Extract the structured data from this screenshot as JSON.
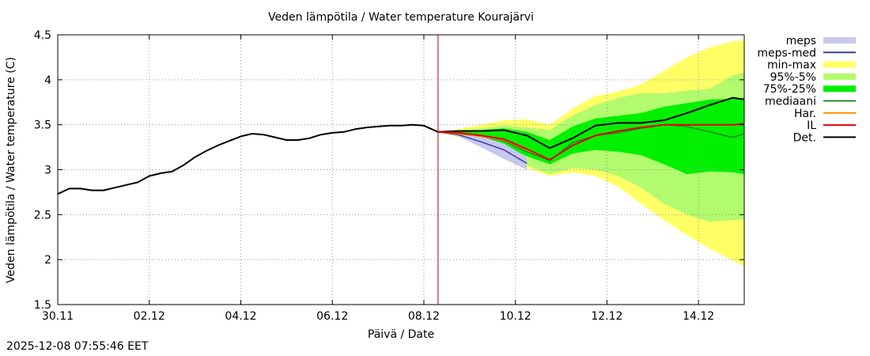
{
  "chart_data": {
    "type": "area",
    "title": "Veden lämpötila / Water temperature Kourajärvi",
    "xlabel": "Päivä / Date",
    "ylabel": "Veden lämpötila / Water temperature (C)",
    "x_start_day": 0,
    "x_end_day": 15,
    "x_ticks": [
      {
        "day": 0,
        "label": "30.11"
      },
      {
        "day": 2,
        "label": "02.12"
      },
      {
        "day": 4,
        "label": "04.12"
      },
      {
        "day": 6,
        "label": "06.12"
      },
      {
        "day": 8,
        "label": "08.12"
      },
      {
        "day": 10,
        "label": "10.12"
      },
      {
        "day": 12,
        "label": "12.12"
      },
      {
        "day": 14,
        "label": "14.12"
      }
    ],
    "ylim": [
      1.5,
      4.5
    ],
    "y_ticks": [
      "1.5",
      "2",
      "2.5",
      "3",
      "3.5",
      "4",
      "4.5"
    ],
    "forecast_start_day": 8.31,
    "legend": [
      {
        "label": "meps",
        "kind": "band",
        "color": "#c8c8f0"
      },
      {
        "label": "meps-med",
        "kind": "line",
        "color": "#3c3ca0"
      },
      {
        "label": "min-max",
        "kind": "band",
        "color": "#ffff66"
      },
      {
        "label": "95%-5%",
        "kind": "band",
        "color": "#b2fa6e"
      },
      {
        "label": "75%-25%",
        "kind": "band",
        "color": "#00f000"
      },
      {
        "label": "mediaani",
        "kind": "line",
        "color": "#228b22"
      },
      {
        "label": "Har.",
        "kind": "line",
        "color": "#ff8c00"
      },
      {
        "label": "IL",
        "kind": "line",
        "color": "#e00000"
      },
      {
        "label": "Det.",
        "kind": "line",
        "color": "#000000"
      }
    ],
    "observed": {
      "x": [
        0,
        0.25,
        0.5,
        0.75,
        1,
        1.25,
        1.5,
        1.75,
        2,
        2.25,
        2.5,
        2.75,
        3,
        3.25,
        3.5,
        3.75,
        4,
        4.25,
        4.5,
        4.75,
        5,
        5.25,
        5.5,
        5.75,
        6,
        6.25,
        6.5,
        6.75,
        7,
        7.25,
        7.5,
        7.75,
        8,
        8.31
      ],
      "y": [
        2.73,
        2.79,
        2.79,
        2.77,
        2.77,
        2.8,
        2.83,
        2.86,
        2.93,
        2.96,
        2.98,
        3.05,
        3.14,
        3.21,
        3.27,
        3.32,
        3.37,
        3.4,
        3.39,
        3.36,
        3.33,
        3.33,
        3.35,
        3.39,
        3.41,
        3.42,
        3.45,
        3.47,
        3.48,
        3.49,
        3.49,
        3.5,
        3.49,
        3.42
      ]
    },
    "forecast_x": [
      8.31,
      8.75,
      9.25,
      9.75,
      10.25,
      10.75,
      11.25,
      11.75,
      12.25,
      12.75,
      13.25,
      13.75,
      14.25,
      14.75,
      15
    ],
    "series": [
      {
        "name": "min-max",
        "low": [
          3.42,
          3.36,
          3.28,
          3.16,
          3.02,
          2.93,
          2.97,
          2.93,
          2.81,
          2.62,
          2.44,
          2.27,
          2.12,
          1.99,
          1.93
        ],
        "high": [
          3.42,
          3.45,
          3.5,
          3.55,
          3.56,
          3.5,
          3.68,
          3.82,
          3.87,
          3.95,
          4.1,
          4.25,
          4.36,
          4.43,
          4.44
        ]
      },
      {
        "name": "95%-5%",
        "low": [
          3.42,
          3.37,
          3.3,
          3.19,
          3.05,
          2.95,
          3.02,
          3.0,
          2.93,
          2.8,
          2.62,
          2.5,
          2.42,
          2.44,
          2.45
        ],
        "high": [
          3.42,
          3.44,
          3.46,
          3.49,
          3.47,
          3.44,
          3.6,
          3.72,
          3.8,
          3.85,
          3.85,
          3.88,
          3.9,
          4.05,
          4.08
        ]
      },
      {
        "name": "75%-25%",
        "low": [
          3.42,
          3.38,
          3.33,
          3.26,
          3.15,
          3.06,
          3.18,
          3.22,
          3.2,
          3.16,
          3.06,
          2.95,
          2.98,
          2.97,
          2.95
        ],
        "high": [
          3.42,
          3.43,
          3.44,
          3.46,
          3.42,
          3.33,
          3.48,
          3.57,
          3.6,
          3.63,
          3.7,
          3.74,
          3.78,
          3.79,
          3.8
        ]
      },
      {
        "name": "meps",
        "low": [
          3.42,
          3.37,
          3.25,
          3.12,
          3.0
        ],
        "high": [
          3.42,
          3.41,
          3.37,
          3.29,
          3.14
        ]
      },
      {
        "name": "meps-med",
        "y": [
          3.42,
          3.39,
          3.31,
          3.22,
          3.07
        ]
      },
      {
        "name": "mediaani",
        "y": [
          3.42,
          3.4,
          3.37,
          3.32,
          3.2,
          3.1,
          3.3,
          3.38,
          3.41,
          3.46,
          3.5,
          3.48,
          3.42,
          3.36,
          3.4
        ]
      },
      {
        "name": "Har.",
        "y": [
          3.42,
          3.4,
          3.37,
          3.33,
          3.22,
          3.11,
          3.27,
          3.38,
          3.43,
          3.47,
          3.5,
          3.5,
          3.5,
          3.5,
          3.51
        ]
      },
      {
        "name": "IL",
        "y": [
          3.42,
          3.41,
          3.38,
          3.34,
          3.23,
          3.11,
          3.27,
          3.38,
          3.43,
          3.47,
          3.5,
          3.5,
          3.5,
          3.5,
          3.51
        ]
      },
      {
        "name": "Det.",
        "y": [
          3.42,
          3.43,
          3.43,
          3.44,
          3.38,
          3.24,
          3.35,
          3.49,
          3.52,
          3.52,
          3.55,
          3.63,
          3.72,
          3.8,
          3.78
        ]
      }
    ]
  },
  "footer": {
    "timestamp": "2025-12-08 07:55:46 EET"
  }
}
